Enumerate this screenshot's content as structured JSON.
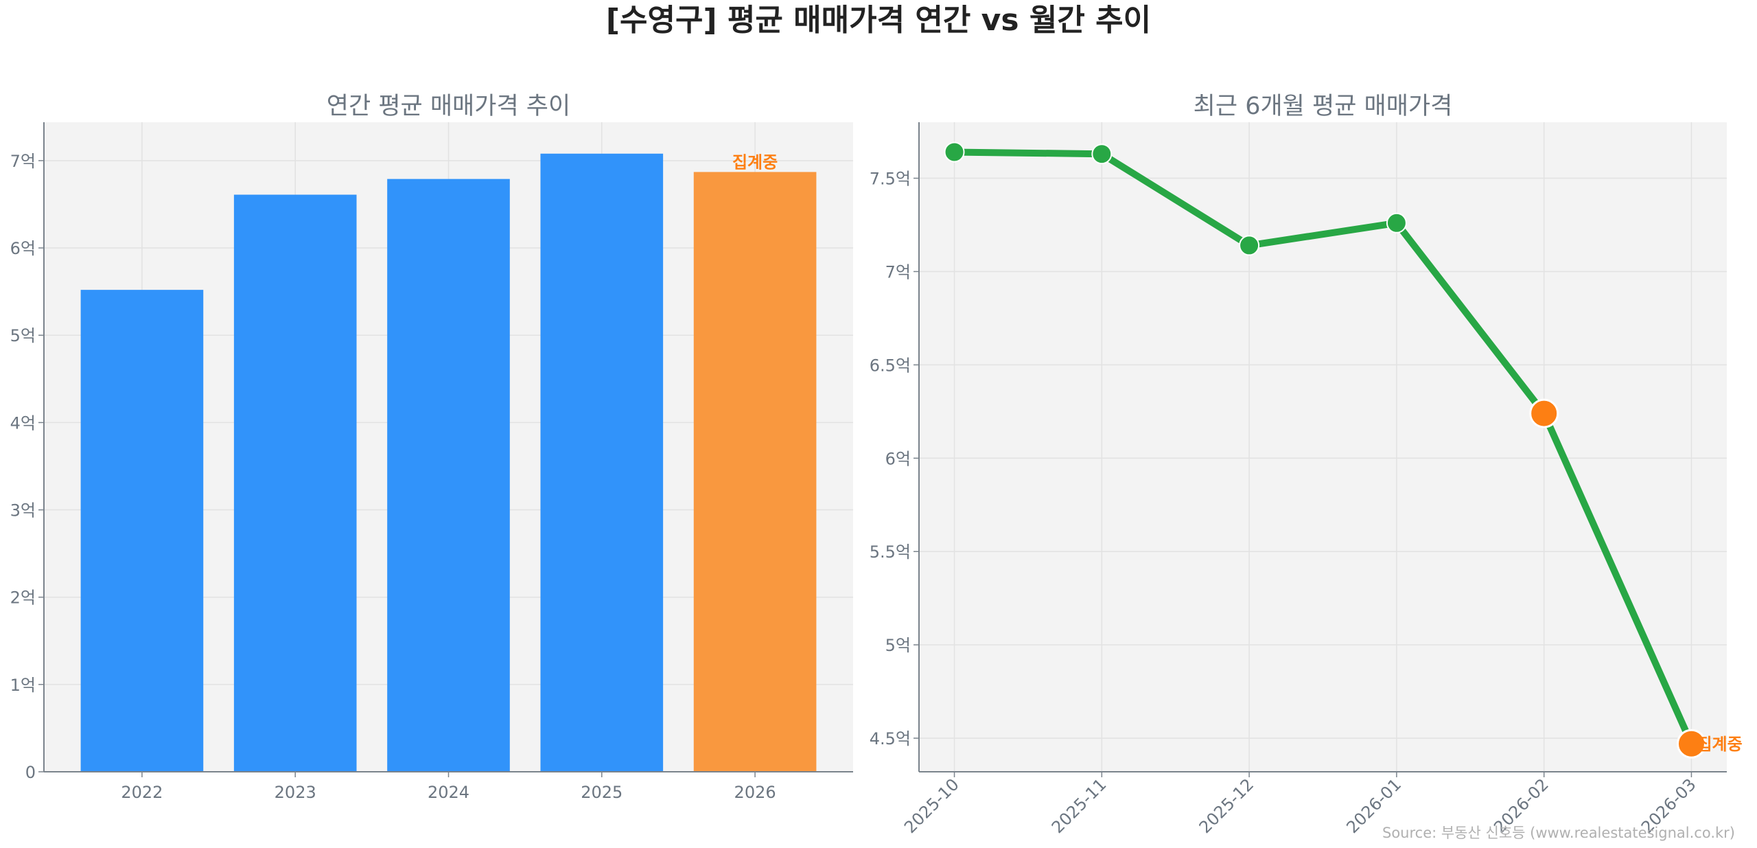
{
  "title": "[수영구] 평균 매매가격 연간 vs 월간 추이",
  "source": "Source: 부동산 신호등 (www.realestatesignal.co.kr)",
  "colors": {
    "bar": "#3193fa",
    "bar_pending": "#f9983f",
    "line": "#28a745",
    "pending": "#fd7f13",
    "plot_bg": "#f3f3f3"
  },
  "chart_data": [
    {
      "type": "bar",
      "title": "연간 평균 매매가격 추이",
      "categories": [
        "2022",
        "2023",
        "2024",
        "2025",
        "2026"
      ],
      "values": [
        5.52,
        6.61,
        6.79,
        7.08,
        6.87
      ],
      "pending": [
        false,
        false,
        false,
        false,
        true
      ],
      "pending_label": "집계중",
      "ylim": [
        0,
        7.44
      ],
      "yticks": [
        0,
        1,
        2,
        3,
        4,
        5,
        6,
        7
      ],
      "ytick_labels": [
        "0",
        "1억",
        "2억",
        "3억",
        "4억",
        "5억",
        "6억",
        "7억"
      ],
      "grid": true
    },
    {
      "type": "line",
      "title": "최근 6개월 평균 매매가격",
      "categories": [
        "2025-10",
        "2025-11",
        "2025-12",
        "2026-01",
        "2026-02",
        "2026-03"
      ],
      "values": [
        7.64,
        7.63,
        7.14,
        7.26,
        6.24,
        4.47
      ],
      "pending": [
        false,
        false,
        false,
        false,
        true,
        true
      ],
      "pending_label": "집계중",
      "ylim": [
        4.32,
        7.8
      ],
      "yticks": [
        4.5,
        5,
        5.5,
        6,
        6.5,
        7,
        7.5
      ],
      "ytick_labels": [
        "4.5억",
        "5억",
        "5.5억",
        "6억",
        "6.5억",
        "7억",
        "7.5억"
      ],
      "grid": true
    }
  ]
}
